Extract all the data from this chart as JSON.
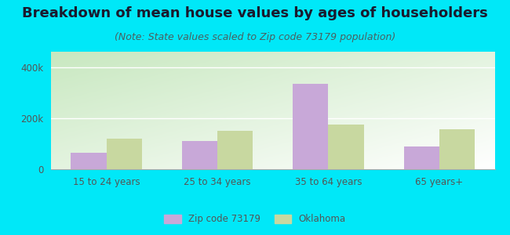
{
  "title": "Breakdown of mean house values by ages of householders",
  "subtitle": "(Note: State values scaled to Zip code 73179 population)",
  "categories": [
    "15 to 24 years",
    "25 to 34 years",
    "35 to 64 years",
    "65 years+"
  ],
  "zip_values": [
    65000,
    110000,
    335000,
    90000
  ],
  "state_values": [
    120000,
    150000,
    175000,
    155000
  ],
  "zip_color": "#c8a8d8",
  "state_color": "#c8d8a0",
  "ylim": [
    0,
    460000
  ],
  "yticks": [
    0,
    200000,
    400000
  ],
  "ytick_labels": [
    "0",
    "200k",
    "400k"
  ],
  "background_outer": "#00e8f8",
  "background_inner_left": "#c8e8c0",
  "background_inner_right": "#f5fff5",
  "bar_width": 0.32,
  "legend_zip_label": "Zip code 73179",
  "legend_state_label": "Oklahoma",
  "title_fontsize": 13,
  "subtitle_fontsize": 9
}
